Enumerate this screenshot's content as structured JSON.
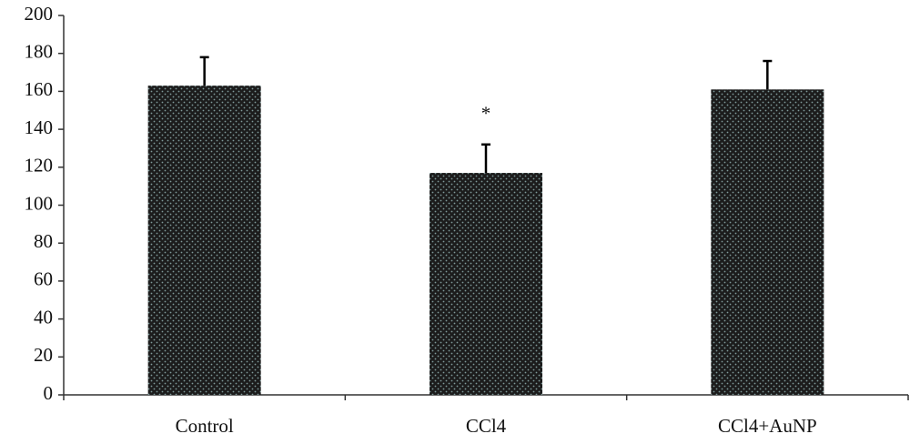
{
  "chart_data": {
    "type": "bar",
    "categories": [
      "Control",
      "CCl4",
      "CCl4+AuNP"
    ],
    "values": [
      163,
      117,
      161
    ],
    "errors": [
      15,
      15,
      15
    ],
    "color": "#1c1c1c",
    "annotations": [
      "*"
    ],
    "ylim": [
      0,
      200
    ],
    "yticks": [
      0,
      20,
      40,
      60,
      80,
      100,
      120,
      140,
      160,
      180,
      200
    ],
    "grid": false
  }
}
